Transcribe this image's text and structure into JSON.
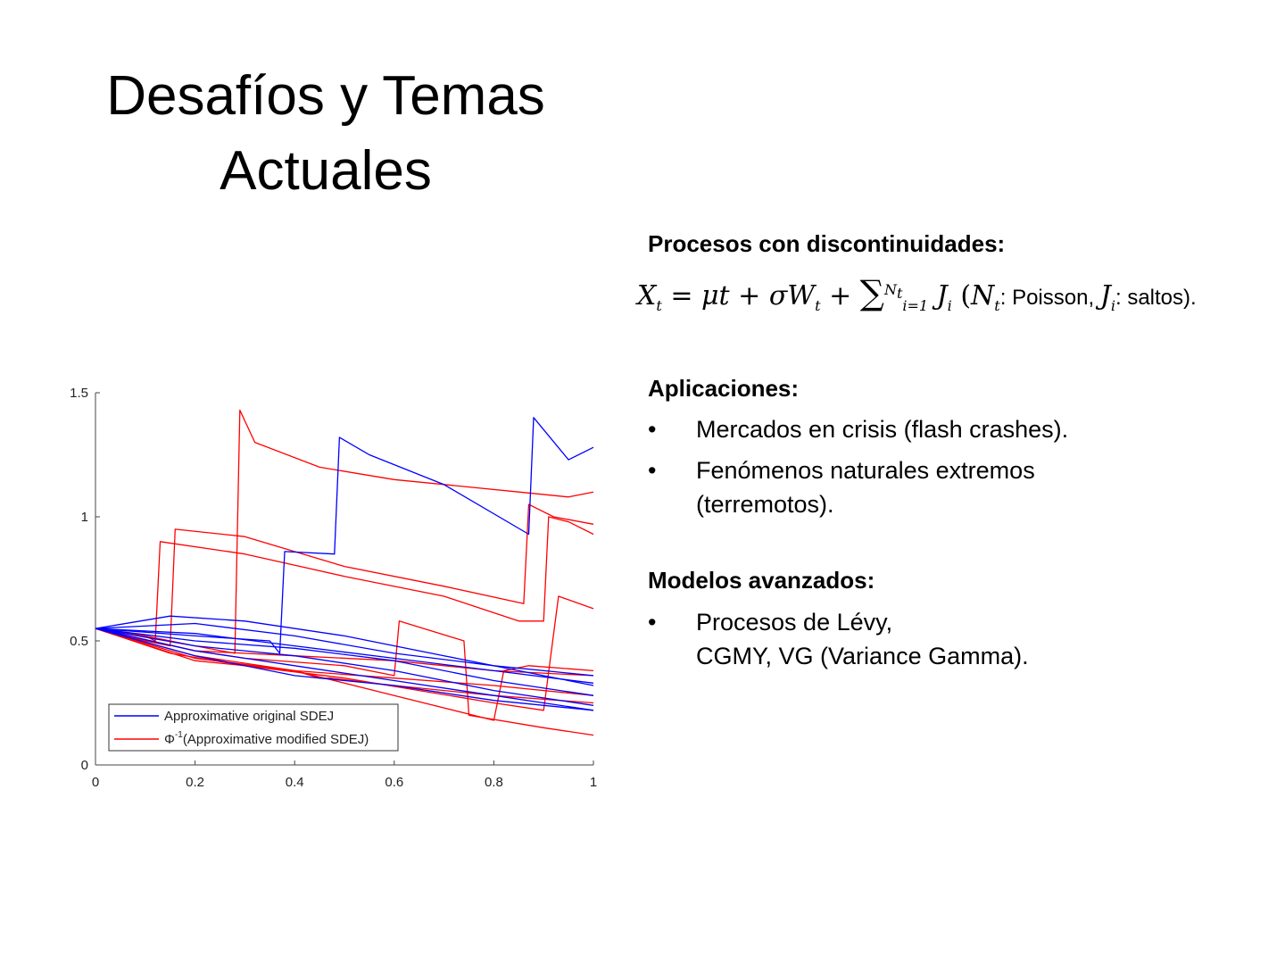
{
  "slide": {
    "title_line1": "Desafíos y Temas",
    "title_line2": "Actuales"
  },
  "content": {
    "procesos_heading": "Procesos con discontinuidades:",
    "formula": {
      "lhs": "X",
      "lhs_sub": "t",
      "sum_upper": "N",
      "sum_upper_sub": "t",
      "sum_lower": "i=1",
      "note_poisson": "Poisson,",
      "note_saltos": "saltos)."
    },
    "aplicaciones_heading": "Aplicaciones:",
    "aplicaciones": [
      "Mercados en crisis (flash crashes).",
      "Fenómenos naturales extremos (terremotos)."
    ],
    "modelos_heading": "Modelos avanzados:",
    "modelos_line1": "Procesos de Lévy,",
    "modelos_line2": "CGMY, VG (Variance Gamma).",
    "bullet_symbol": "•"
  },
  "chart_data": {
    "type": "line",
    "xlim": [
      0,
      1
    ],
    "ylim": [
      0,
      1.5
    ],
    "xticks": [
      "0",
      "0.2",
      "0.4",
      "0.6",
      "0.8",
      "1"
    ],
    "yticks": [
      "0",
      "0.5",
      "1",
      "1.5"
    ],
    "legend_placement": "bottom-left",
    "legend": [
      "Approximative original SDEJ",
      "Φ-1(Approximative modified SDEJ)"
    ],
    "legend_label_phi": "Φ",
    "legend_label_sup": "-1",
    "legend_label_rest": "(Approximative modified SDEJ)",
    "colors": {
      "original": "#0000ff",
      "modified": "#ff0000"
    },
    "series": [
      {
        "group": "modified",
        "x": [
          0,
          0.1,
          0.2,
          0.28,
          0.29,
          0.32,
          0.45,
          0.6,
          0.75,
          0.85,
          0.95,
          1.0
        ],
        "y": [
          0.55,
          0.52,
          0.48,
          0.45,
          1.43,
          1.3,
          1.2,
          1.15,
          1.12,
          1.1,
          1.08,
          1.1
        ]
      },
      {
        "group": "modified",
        "x": [
          0,
          0.1,
          0.15,
          0.16,
          0.3,
          0.5,
          0.7,
          0.86,
          0.87,
          0.92,
          1.0
        ],
        "y": [
          0.55,
          0.5,
          0.48,
          0.95,
          0.92,
          0.8,
          0.72,
          0.65,
          1.05,
          1.0,
          0.97
        ]
      },
      {
        "group": "modified",
        "x": [
          0,
          0.1,
          0.12,
          0.13,
          0.3,
          0.5,
          0.7,
          0.85,
          0.9,
          0.91,
          0.95,
          1.0
        ],
        "y": [
          0.55,
          0.52,
          0.5,
          0.9,
          0.85,
          0.76,
          0.68,
          0.58,
          0.58,
          1.0,
          0.98,
          0.93
        ]
      },
      {
        "group": "modified",
        "x": [
          0,
          0.15,
          0.3,
          0.5,
          0.65,
          0.8,
          0.9,
          0.93,
          1.0
        ],
        "y": [
          0.55,
          0.45,
          0.4,
          0.35,
          0.3,
          0.25,
          0.22,
          0.68,
          0.63
        ]
      },
      {
        "group": "modified",
        "x": [
          0,
          0.2,
          0.3,
          0.5,
          0.6,
          0.61,
          0.74,
          0.75,
          0.9,
          1.0
        ],
        "y": [
          0.55,
          0.46,
          0.43,
          0.4,
          0.36,
          0.58,
          0.5,
          0.2,
          0.15,
          0.12
        ]
      },
      {
        "group": "modified",
        "x": [
          0,
          0.2,
          0.4,
          0.45,
          0.47,
          0.6,
          0.8,
          1.0
        ],
        "y": [
          0.55,
          0.43,
          0.38,
          0.35,
          0.35,
          0.32,
          0.28,
          0.25
        ]
      },
      {
        "group": "modified",
        "x": [
          0,
          0.2,
          0.4,
          0.6,
          0.8,
          0.82,
          0.87,
          1.0
        ],
        "y": [
          0.55,
          0.44,
          0.38,
          0.28,
          0.18,
          0.38,
          0.4,
          0.38
        ]
      },
      {
        "group": "modified",
        "x": [
          0,
          0.2,
          0.4,
          0.6,
          0.8,
          1.0
        ],
        "y": [
          0.55,
          0.42,
          0.38,
          0.35,
          0.32,
          0.28
        ]
      },
      {
        "group": "modified",
        "x": [
          0,
          0.2,
          0.4,
          0.6,
          0.8,
          1.0
        ],
        "y": [
          0.55,
          0.46,
          0.44,
          0.42,
          0.38,
          0.36
        ]
      },
      {
        "group": "original",
        "x": [
          0,
          0.2,
          0.35,
          0.37,
          0.38,
          0.48,
          0.49,
          0.55,
          0.7,
          0.87,
          0.88,
          0.95,
          1.0
        ],
        "y": [
          0.55,
          0.52,
          0.5,
          0.45,
          0.86,
          0.85,
          1.32,
          1.25,
          1.13,
          0.93,
          1.4,
          1.23,
          1.28
        ]
      },
      {
        "group": "original",
        "x": [
          0,
          0.15,
          0.3,
          0.5,
          0.7,
          0.85,
          1.0
        ],
        "y": [
          0.55,
          0.6,
          0.58,
          0.52,
          0.44,
          0.38,
          0.32
        ]
      },
      {
        "group": "original",
        "x": [
          0,
          0.2,
          0.4,
          0.6,
          0.8,
          1.0
        ],
        "y": [
          0.55,
          0.5,
          0.47,
          0.42,
          0.34,
          0.28
        ]
      },
      {
        "group": "original",
        "x": [
          0,
          0.2,
          0.4,
          0.6,
          0.8,
          1.0
        ],
        "y": [
          0.55,
          0.48,
          0.44,
          0.38,
          0.3,
          0.24
        ]
      },
      {
        "group": "original",
        "x": [
          0,
          0.2,
          0.4,
          0.6,
          0.8,
          1.0
        ],
        "y": [
          0.55,
          0.46,
          0.4,
          0.34,
          0.28,
          0.22
        ]
      },
      {
        "group": "original",
        "x": [
          0,
          0.2,
          0.4,
          0.6,
          0.8,
          1.0
        ],
        "y": [
          0.55,
          0.53,
          0.48,
          0.43,
          0.38,
          0.33
        ]
      },
      {
        "group": "original",
        "x": [
          0,
          0.2,
          0.4,
          0.6,
          0.8,
          1.0
        ],
        "y": [
          0.55,
          0.57,
          0.52,
          0.45,
          0.4,
          0.36
        ]
      },
      {
        "group": "original",
        "x": [
          0,
          0.2,
          0.4,
          0.6,
          0.8,
          1.0
        ],
        "y": [
          0.55,
          0.44,
          0.36,
          0.32,
          0.26,
          0.22
        ]
      }
    ]
  }
}
